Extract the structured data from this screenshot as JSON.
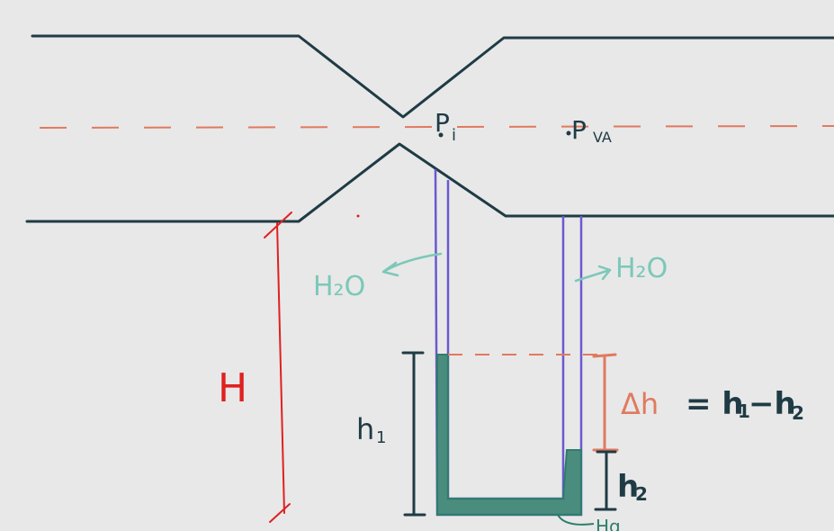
{
  "labels": {
    "p_i": "P",
    "p_i_sub": "i",
    "p_va": "P",
    "p_va_sub": "VA",
    "water_left": "H₂O",
    "water_right": "H₂O",
    "water_bottom": "Hg",
    "height_H": "H",
    "h1": "h",
    "h1_sub": "1",
    "h2": "h",
    "h2_sub": "2",
    "delta_h_symbol": "Δh",
    "equation": "= h",
    "equation_sub1": "1",
    "equation_minus": "−h",
    "equation_sub2": "2"
  },
  "colors": {
    "pipe": "#1f3b45",
    "axis": "#e07a5f",
    "manometer_tube": "#6a5acd",
    "fluid": "#2e7d6b",
    "water_label": "#7cc8b8",
    "height_marker": "#e02020",
    "delta_marker": "#e07a5f"
  }
}
